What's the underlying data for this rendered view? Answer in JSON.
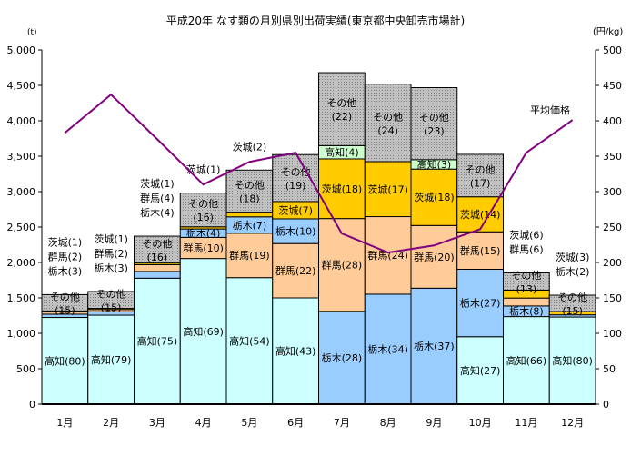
{
  "chart_data": {
    "type": "bar",
    "stacked": true,
    "title": "平成20年 なす類の月別県別出荷実績(東京都中央卸売市場計)",
    "ylabel": "(t)",
    "y2label": "(円/kg)",
    "ylim": [
      0,
      5000
    ],
    "y2lim": [
      0,
      500
    ],
    "yticks": [
      "0",
      "500",
      "1,000",
      "1,500",
      "2,000",
      "2,500",
      "3,000",
      "3,500",
      "4,000",
      "4,500",
      "5,000"
    ],
    "y2ticks": [
      "0",
      "50",
      "100",
      "150",
      "200",
      "250",
      "300",
      "350",
      "400",
      "450",
      "500"
    ],
    "categories": [
      "1月",
      "2月",
      "3月",
      "4月",
      "5月",
      "6月",
      "7月",
      "8月",
      "9月",
      "10月",
      "11月",
      "12月"
    ],
    "colors": {
      "高知": "#ccffff",
      "栃木": "#99ccff",
      "群馬": "#ffcc99",
      "茨城": "#ffcc00",
      "高知_top": "#ccffcc",
      "その他": "#c0c0c0",
      "平均価格": "#800080"
    },
    "stacks": [
      [
        {
          "s": "高知",
          "v": 1224,
          "p": 80
        },
        {
          "s": "栃木",
          "v": 46,
          "p": 3
        },
        {
          "s": "群馬",
          "v": 31,
          "p": 2
        },
        {
          "s": "茨城",
          "v": 15,
          "p": 1
        },
        {
          "s": "その他",
          "v": 230,
          "p": 15
        }
      ],
      [
        {
          "s": "高知",
          "v": 1256,
          "p": 79
        },
        {
          "s": "栃木",
          "v": 48,
          "p": 3
        },
        {
          "s": "群馬",
          "v": 32,
          "p": 2
        },
        {
          "s": "茨城",
          "v": 16,
          "p": 1
        },
        {
          "s": "その他",
          "v": 238,
          "p": 15
        }
      ],
      [
        {
          "s": "高知",
          "v": 1778,
          "p": 75
        },
        {
          "s": "栃木",
          "v": 95,
          "p": 4
        },
        {
          "s": "群馬",
          "v": 95,
          "p": 4
        },
        {
          "s": "茨城",
          "v": 24,
          "p": 1
        },
        {
          "s": "その他",
          "v": 379,
          "p": 16
        }
      ],
      [
        {
          "s": "高知",
          "v": 2056,
          "p": 69
        },
        {
          "s": "群馬",
          "v": 298,
          "p": 10
        },
        {
          "s": "栃木",
          "v": 119,
          "p": 4
        },
        {
          "s": "茨城",
          "v": 30,
          "p": 1
        },
        {
          "s": "その他",
          "v": 477,
          "p": 16
        }
      ],
      [
        {
          "s": "高知",
          "v": 1786,
          "p": 54
        },
        {
          "s": "群馬",
          "v": 627,
          "p": 19
        },
        {
          "s": "栃木",
          "v": 231,
          "p": 7
        },
        {
          "s": "茨城",
          "v": 66,
          "p": 2
        },
        {
          "s": "その他",
          "v": 594,
          "p": 18
        }
      ],
      [
        {
          "s": "高知",
          "v": 1500,
          "p": 43
        },
        {
          "s": "群馬",
          "v": 767,
          "p": 22
        },
        {
          "s": "栃木",
          "v": 349,
          "p": 10
        },
        {
          "s": "茨城",
          "v": 244,
          "p": 7
        },
        {
          "s": "その他",
          "v": 663,
          "p": 19
        }
      ],
      [
        {
          "s": "栃木",
          "v": 1310,
          "p": 28
        },
        {
          "s": "群馬",
          "v": 1310,
          "p": 28
        },
        {
          "s": "茨城",
          "v": 842,
          "p": 18
        },
        {
          "s": "高知",
          "v": 187,
          "p": 4,
          "top": true
        },
        {
          "s": "その他",
          "v": 1030,
          "p": 22
        }
      ],
      [
        {
          "s": "栃木",
          "v": 1552,
          "p": 34
        },
        {
          "s": "群馬",
          "v": 1095,
          "p": 24
        },
        {
          "s": "茨城",
          "v": 776,
          "p": 17
        },
        {
          "s": "その他",
          "v": 1095,
          "p": 24
        }
      ],
      [
        {
          "s": "栃木",
          "v": 1637,
          "p": 37
        },
        {
          "s": "群馬",
          "v": 885,
          "p": 20
        },
        {
          "s": "茨城",
          "v": 796,
          "p": 18
        },
        {
          "s": "高知",
          "v": 133,
          "p": 3,
          "top": true
        },
        {
          "s": "その他",
          "v": 1017,
          "p": 23
        }
      ],
      [
        {
          "s": "高知",
          "v": 952,
          "p": 27
        },
        {
          "s": "栃木",
          "v": 952,
          "p": 27
        },
        {
          "s": "群馬",
          "v": 529,
          "p": 15
        },
        {
          "s": "茨城",
          "v": 494,
          "p": 14
        },
        {
          "s": "その他",
          "v": 599,
          "p": 17
        }
      ],
      [
        {
          "s": "高知",
          "v": 1236,
          "p": 66
        },
        {
          "s": "栃木",
          "v": 150,
          "p": 8
        },
        {
          "s": "群馬",
          "v": 112,
          "p": 6
        },
        {
          "s": "茨城",
          "v": 112,
          "p": 6
        },
        {
          "s": "その他",
          "v": 243,
          "p": 13
        }
      ],
      [
        {
          "s": "高知",
          "v": 1230,
          "p": 80
        },
        {
          "s": "栃木",
          "v": 31,
          "p": 2
        },
        {
          "s": "茨城",
          "v": 46,
          "p": 3
        },
        {
          "s": "その他",
          "v": 231,
          "p": 15
        }
      ]
    ],
    "line": {
      "name": "平均価格",
      "values": [
        383,
        437,
        374,
        310,
        342,
        355,
        241,
        214,
        224,
        247,
        355,
        401
      ]
    }
  }
}
